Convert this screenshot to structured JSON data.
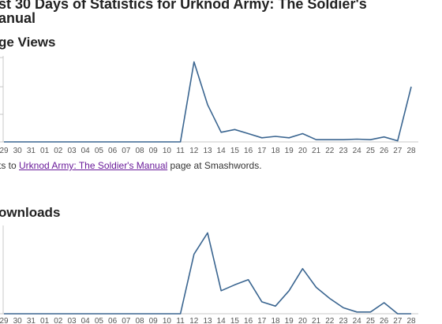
{
  "page": {
    "title_line1": "st 30 Days of Statistics for Urknod Army: The Soldier's",
    "title_line2": "anual"
  },
  "page_views": {
    "heading": "ge Views",
    "caption_prefix": "ts to ",
    "caption_link": "Urknod Army: The Soldier's Manual",
    "caption_suffix": " page at Smashwords."
  },
  "downloads": {
    "heading": "ownloads"
  },
  "chart_data": [
    {
      "type": "line",
      "name": "page-views",
      "title": "ge Views",
      "x": [
        "29",
        "30",
        "31",
        "01",
        "02",
        "03",
        "04",
        "05",
        "06",
        "07",
        "08",
        "09",
        "10",
        "11",
        "12",
        "13",
        "14",
        "15",
        "16",
        "17",
        "18",
        "19",
        "20",
        "21",
        "22",
        "23",
        "24",
        "25",
        "26",
        "27",
        "28"
      ],
      "values": [
        0,
        0,
        0,
        0,
        0,
        0,
        0,
        0,
        0,
        0,
        0,
        0,
        0,
        0,
        29,
        13.5,
        3.5,
        4.5,
        3,
        1.5,
        2,
        1.5,
        3,
        0.8,
        0.8,
        0.8,
        1,
        0.8,
        1.8,
        0.4,
        20
      ],
      "ylim": [
        0,
        30
      ],
      "grid": false,
      "color": "#3a6590"
    },
    {
      "type": "line",
      "name": "downloads",
      "title": "ownloads",
      "x": [
        "29",
        "30",
        "31",
        "01",
        "02",
        "03",
        "04",
        "05",
        "06",
        "07",
        "08",
        "09",
        "10",
        "11",
        "12",
        "13",
        "14",
        "15",
        "16",
        "17",
        "18",
        "19",
        "20",
        "21",
        "22",
        "23",
        "24",
        "25",
        "26",
        "27",
        "28"
      ],
      "values": [
        0,
        0,
        0,
        0,
        0,
        0,
        0,
        0,
        0,
        0,
        0,
        0,
        0,
        0,
        7,
        9.5,
        2.7,
        3.4,
        4,
        1.4,
        0.9,
        2.7,
        5.3,
        3.1,
        1.8,
        0.7,
        0.2,
        0.2,
        1.3,
        0,
        0
      ],
      "ylim": [
        0,
        10
      ],
      "grid": false,
      "color": "#3a6590"
    }
  ]
}
